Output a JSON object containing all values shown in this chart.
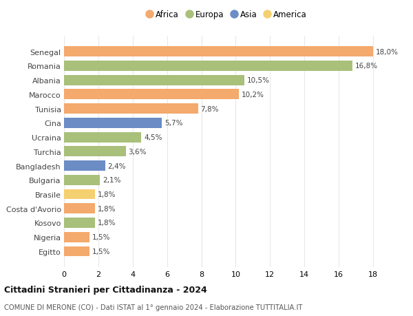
{
  "categories": [
    "Senegal",
    "Romania",
    "Albania",
    "Marocco",
    "Tunisia",
    "Cina",
    "Ucraina",
    "Turchia",
    "Bangladesh",
    "Bulgaria",
    "Brasile",
    "Costa d'Avorio",
    "Kosovo",
    "Nigeria",
    "Egitto"
  ],
  "values": [
    18.0,
    16.8,
    10.5,
    10.2,
    7.8,
    5.7,
    4.5,
    3.6,
    2.4,
    2.1,
    1.8,
    1.8,
    1.8,
    1.5,
    1.5
  ],
  "labels": [
    "18,0%",
    "16,8%",
    "10,5%",
    "10,2%",
    "7,8%",
    "5,7%",
    "4,5%",
    "3,6%",
    "2,4%",
    "2,1%",
    "1,8%",
    "1,8%",
    "1,8%",
    "1,5%",
    "1,5%"
  ],
  "continents": [
    "Africa",
    "Europa",
    "Europa",
    "Africa",
    "Africa",
    "Asia",
    "Europa",
    "Europa",
    "Asia",
    "Europa",
    "America",
    "Africa",
    "Europa",
    "Africa",
    "Africa"
  ],
  "colors": {
    "Africa": "#F4A96D",
    "Europa": "#A8C07A",
    "Asia": "#6B8CC4",
    "America": "#F5D070"
  },
  "legend_order": [
    "Africa",
    "Europa",
    "Asia",
    "America"
  ],
  "title": "Cittadini Stranieri per Cittadinanza - 2024",
  "subtitle": "COMUNE DI MERONE (CO) - Dati ISTAT al 1° gennaio 2024 - Elaborazione TUTTITALIA.IT",
  "xlim": [
    0,
    19
  ],
  "xticks": [
    0,
    2,
    4,
    6,
    8,
    10,
    12,
    14,
    16,
    18
  ],
  "background_color": "#ffffff",
  "grid_color": "#e8e8e8"
}
